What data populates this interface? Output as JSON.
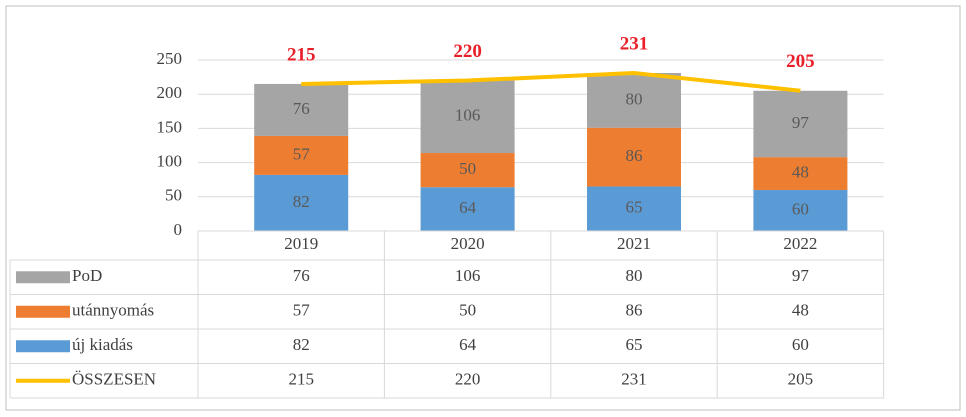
{
  "chart_data": {
    "type": "bar",
    "stacked": true,
    "categories": [
      "2019",
      "2020",
      "2021",
      "2022"
    ],
    "series": [
      {
        "name": "PoD",
        "color": "#a5a5a5",
        "values": [
          76,
          106,
          80,
          97
        ]
      },
      {
        "name": "utánnyomás",
        "color": "#ed7d31",
        "values": [
          57,
          50,
          86,
          48
        ]
      },
      {
        "name": "új kiadás",
        "color": "#5b9bd5",
        "values": [
          82,
          64,
          65,
          60
        ]
      },
      {
        "name": "ÖSSZESEN",
        "color": "#ffc000",
        "type": "line",
        "values": [
          215,
          220,
          231,
          205
        ]
      }
    ],
    "ylim": [
      0,
      250
    ],
    "yticks": [
      0,
      50,
      100,
      150,
      200,
      250
    ],
    "grid": true,
    "data_table": true
  }
}
